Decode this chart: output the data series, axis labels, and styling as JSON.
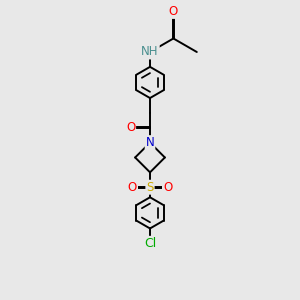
{
  "background_color": "#e8e8e8",
  "atom_colors": {
    "N": "#0000cc",
    "O": "#ff0000",
    "S": "#ccaa00",
    "Cl": "#00aa00",
    "NH": "#4a8f8f"
  },
  "bond_lw": 1.4,
  "font_size": 8.5
}
